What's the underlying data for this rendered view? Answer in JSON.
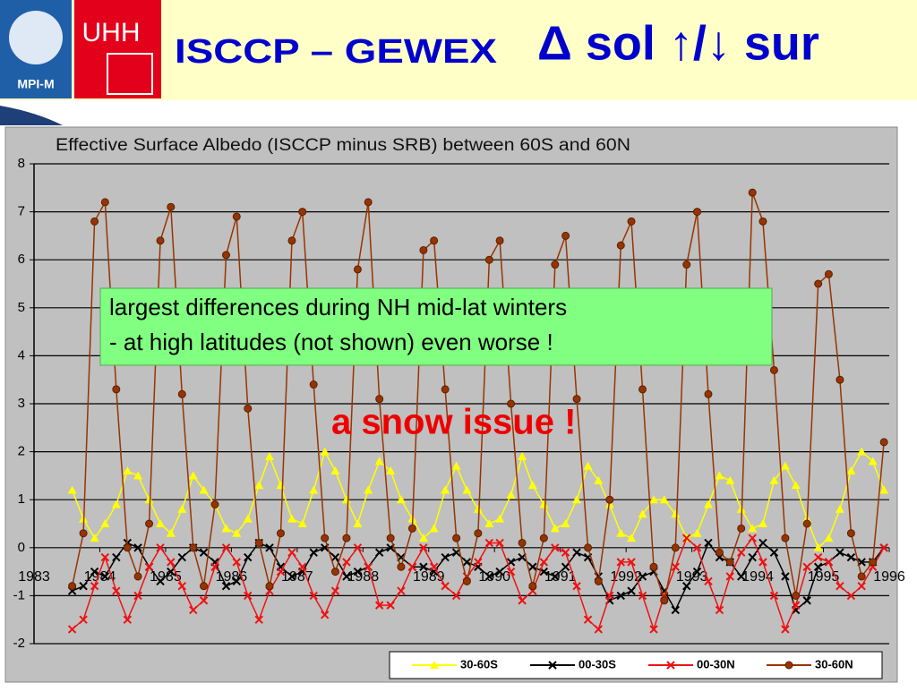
{
  "header": {
    "title": "ISCCP – GEWEX",
    "subtitle": "Δ sol ↑/↓ sur",
    "logo_left": "MPI-M",
    "logo_right": "UHH"
  },
  "chart_data": {
    "type": "line",
    "title": "Effective Surface Albedo (ISCCP minus SRB) between 60S and 60N",
    "annotations": [
      "largest differences during NH mid-lat winters",
      "- at high latitudes (not shown) even worse !",
      "a snow issue !"
    ],
    "xlim": [
      1983,
      1996
    ],
    "xticks": [
      1983,
      1984,
      1985,
      1986,
      1987,
      1988,
      1989,
      1990,
      1991,
      1992,
      1993,
      1994,
      1995,
      1996
    ],
    "ylim": [
      -2,
      8
    ],
    "yticks": [
      -2,
      -1,
      0,
      1,
      2,
      3,
      4,
      5,
      6,
      7,
      8
    ],
    "grid": true,
    "x": [
      1983.58,
      1983.75,
      1983.92,
      1984.08,
      1984.25,
      1984.42,
      1984.58,
      1984.75,
      1984.92,
      1985.08,
      1985.25,
      1985.42,
      1985.58,
      1985.75,
      1985.92,
      1986.08,
      1986.25,
      1986.42,
      1986.58,
      1986.75,
      1986.92,
      1987.08,
      1987.25,
      1987.42,
      1987.58,
      1987.75,
      1987.92,
      1988.08,
      1988.25,
      1988.42,
      1988.58,
      1988.75,
      1988.92,
      1989.08,
      1989.25,
      1989.42,
      1989.58,
      1989.75,
      1989.92,
      1990.08,
      1990.25,
      1990.42,
      1990.58,
      1990.75,
      1990.92,
      1991.08,
      1991.25,
      1991.42,
      1991.58,
      1991.75,
      1991.92,
      1992.08,
      1992.25,
      1992.42,
      1992.58,
      1992.75,
      1992.92,
      1993.08,
      1993.25,
      1993.42,
      1993.58,
      1993.75,
      1993.92,
      1994.08,
      1994.25,
      1994.42,
      1994.58,
      1994.75,
      1994.92,
      1995.08,
      1995.25,
      1995.42,
      1995.58,
      1995.75,
      1995.92
    ],
    "series": [
      {
        "name": "30-60S",
        "color": "#ffff00",
        "marker": "triangle",
        "values": [
          1.2,
          0.6,
          0.2,
          0.5,
          0.9,
          1.6,
          1.5,
          1.0,
          0.5,
          0.3,
          0.8,
          1.5,
          1.2,
          0.9,
          0.4,
          0.3,
          0.6,
          1.3,
          1.9,
          1.3,
          0.6,
          0.5,
          1.2,
          2.0,
          1.6,
          1.0,
          0.5,
          1.2,
          1.8,
          1.6,
          1.0,
          0.6,
          0.2,
          0.4,
          1.2,
          1.7,
          1.2,
          0.8,
          0.5,
          0.6,
          1.1,
          1.9,
          1.3,
          0.9,
          0.4,
          0.5,
          1.0,
          1.7,
          1.4,
          0.9,
          0.3,
          0.2,
          0.7,
          1.0,
          1.0,
          0.7,
          0.2,
          0.3,
          0.9,
          1.5,
          1.4,
          0.8,
          0.4,
          0.5,
          1.4,
          1.7,
          1.3,
          0.6,
          0.0,
          0.2,
          0.8,
          1.6,
          2.0,
          1.8,
          1.2
        ]
      },
      {
        "name": "00-30S",
        "color": "#000000",
        "marker": "x",
        "values": [
          -0.9,
          -0.8,
          -0.5,
          -0.6,
          -0.2,
          0.1,
          0.0,
          -0.4,
          -0.7,
          -0.5,
          -0.2,
          0.0,
          -0.1,
          -0.3,
          -0.8,
          -0.7,
          -0.2,
          0.1,
          0.0,
          -0.4,
          -0.6,
          -0.5,
          -0.1,
          0.0,
          -0.2,
          -0.6,
          -0.5,
          -0.4,
          -0.1,
          0.0,
          -0.2,
          -0.4,
          -0.4,
          -0.5,
          -0.2,
          -0.1,
          -0.3,
          -0.4,
          -0.6,
          -0.5,
          -0.3,
          -0.2,
          -0.4,
          -0.5,
          -0.6,
          -0.4,
          -0.1,
          -0.2,
          -0.6,
          -1.1,
          -1.0,
          -0.9,
          -0.6,
          -0.5,
          -0.9,
          -1.3,
          -0.8,
          -0.5,
          0.1,
          -0.2,
          -0.3,
          -0.6,
          -0.2,
          0.1,
          -0.1,
          -0.6,
          -1.3,
          -1.1,
          -0.4,
          -0.3,
          -0.1,
          -0.2,
          -0.3,
          -0.3,
          0.0
        ]
      },
      {
        "name": "00-30N",
        "color": "#ee1111",
        "marker": "x",
        "values": [
          -1.7,
          -1.5,
          -0.8,
          -0.2,
          -0.9,
          -1.5,
          -1.0,
          -0.4,
          0.0,
          -0.3,
          -0.8,
          -1.3,
          -1.1,
          -0.4,
          0.0,
          -0.3,
          -1.0,
          -1.5,
          -0.9,
          -0.5,
          -0.1,
          -0.4,
          -1.0,
          -1.4,
          -0.9,
          -0.3,
          0.0,
          -0.4,
          -1.2,
          -1.2,
          -0.9,
          -0.4,
          0.0,
          -0.4,
          -0.8,
          -1.0,
          -0.6,
          -0.3,
          0.1,
          0.1,
          -0.5,
          -1.1,
          -0.9,
          -0.3,
          0.0,
          -0.1,
          -0.8,
          -1.5,
          -1.7,
          -1.0,
          -0.3,
          -0.3,
          -1.0,
          -1.7,
          -1.0,
          -0.4,
          0.2,
          0.0,
          -0.7,
          -1.3,
          -0.6,
          -0.1,
          0.2,
          -0.3,
          -1.0,
          -1.7,
          -1.2,
          -0.4,
          -0.2,
          -0.3,
          -0.8,
          -1.0,
          -0.8,
          -0.4,
          0.0
        ]
      },
      {
        "name": "30-60N",
        "color": "#993300",
        "marker": "circle",
        "values": [
          -0.8,
          0.3,
          6.8,
          7.2,
          3.3,
          0.0,
          -0.6,
          0.5,
          6.4,
          7.1,
          3.2,
          0.0,
          -0.8,
          0.9,
          6.1,
          6.9,
          2.9,
          0.1,
          -0.8,
          0.3,
          6.4,
          7.0,
          3.4,
          0.2,
          -0.5,
          0.2,
          5.8,
          7.2,
          3.1,
          0.2,
          -0.4,
          0.4,
          6.2,
          6.4,
          3.3,
          0.2,
          -0.7,
          0.3,
          6.0,
          6.4,
          3.0,
          0.1,
          -0.8,
          0.2,
          5.9,
          6.5,
          3.1,
          0.0,
          -0.7,
          1.0,
          6.3,
          6.8,
          3.3,
          -0.4,
          -1.1,
          0.0,
          5.9,
          7.0,
          3.2,
          -0.1,
          -0.3,
          0.4,
          7.4,
          6.8,
          3.7,
          0.2,
          -1.0,
          0.5,
          5.5,
          5.7,
          3.5,
          0.3,
          -0.6,
          -0.3,
          2.2
        ]
      }
    ]
  }
}
